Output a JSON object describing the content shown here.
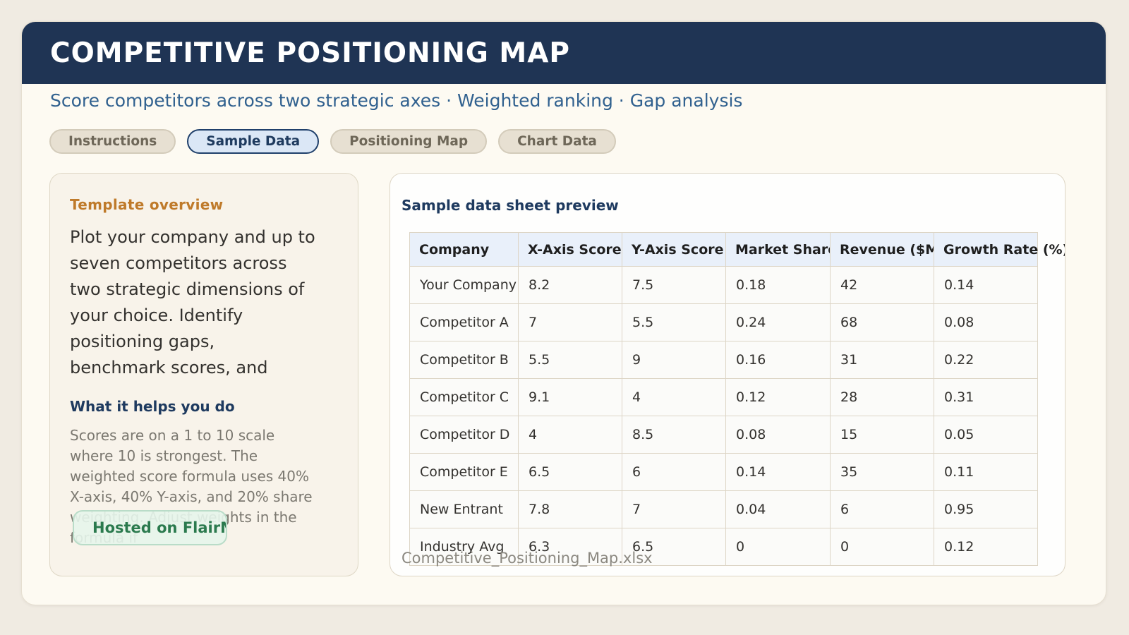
{
  "header": {
    "title": "COMPETITIVE POSITIONING MAP",
    "subtitle": "Score competitors across two strategic axes · Weighted ranking · Gap analysis"
  },
  "tabs": [
    {
      "label": "Instructions",
      "active": false
    },
    {
      "label": "Sample Data",
      "active": true
    },
    {
      "label": "Positioning Map",
      "active": false
    },
    {
      "label": "Chart Data",
      "active": false
    }
  ],
  "overview": {
    "heading": "Template overview",
    "body": "Plot your company and up to seven competitors across two strategic dimensions of your choice. Identify positioning gaps, benchmark scores, and",
    "subheading": "What it helps you do",
    "body2": "Scores are on a 1 to 10 scale where 10 is strongest. The weighted score formula uses 40% X-axis, 40% Y-axis, and 20% share weighting. Adjust weights in the formula if",
    "badge_label": "Hosted on FlairML"
  },
  "preview": {
    "heading": "Sample data sheet preview",
    "filename": "Competitive_Positioning_Map.xlsx",
    "table": {
      "columns": [
        "Company",
        "X-Axis Score",
        "Y-Axis Score",
        "Market Share",
        "Revenue ($M)",
        "Growth Rate (%)"
      ],
      "rows": [
        [
          "Your Company",
          "8.2",
          "7.5",
          "0.18",
          "42",
          "0.14"
        ],
        [
          "Competitor A",
          "7",
          "5.5",
          "0.24",
          "68",
          "0.08"
        ],
        [
          "Competitor B",
          "5.5",
          "9",
          "0.16",
          "31",
          "0.22"
        ],
        [
          "Competitor C",
          "9.1",
          "4",
          "0.12",
          "28",
          "0.31"
        ],
        [
          "Competitor D",
          "4",
          "8.5",
          "0.08",
          "15",
          "0.05"
        ],
        [
          "Competitor E",
          "6.5",
          "6",
          "0.14",
          "35",
          "0.11"
        ],
        [
          "New Entrant",
          "7.8",
          "7",
          "0.04",
          "6",
          "0.95"
        ],
        [
          "Industry Avg",
          "6.3",
          "6.5",
          "0",
          "0",
          "0.12"
        ]
      ]
    }
  },
  "colors": {
    "page_background": "#f0ebe2",
    "card_background": "#fdfaf2",
    "header_navy": "#1f3454",
    "subtitle_blue": "#31618f",
    "accent_orange": "#bf7a2a",
    "heading_navy": "#1e3a5f",
    "badge_green": "#2b7a4e",
    "table_header_background": "#e9f0fa",
    "table_border": "#ddd5c6",
    "muted_gray": "#7b7870"
  }
}
